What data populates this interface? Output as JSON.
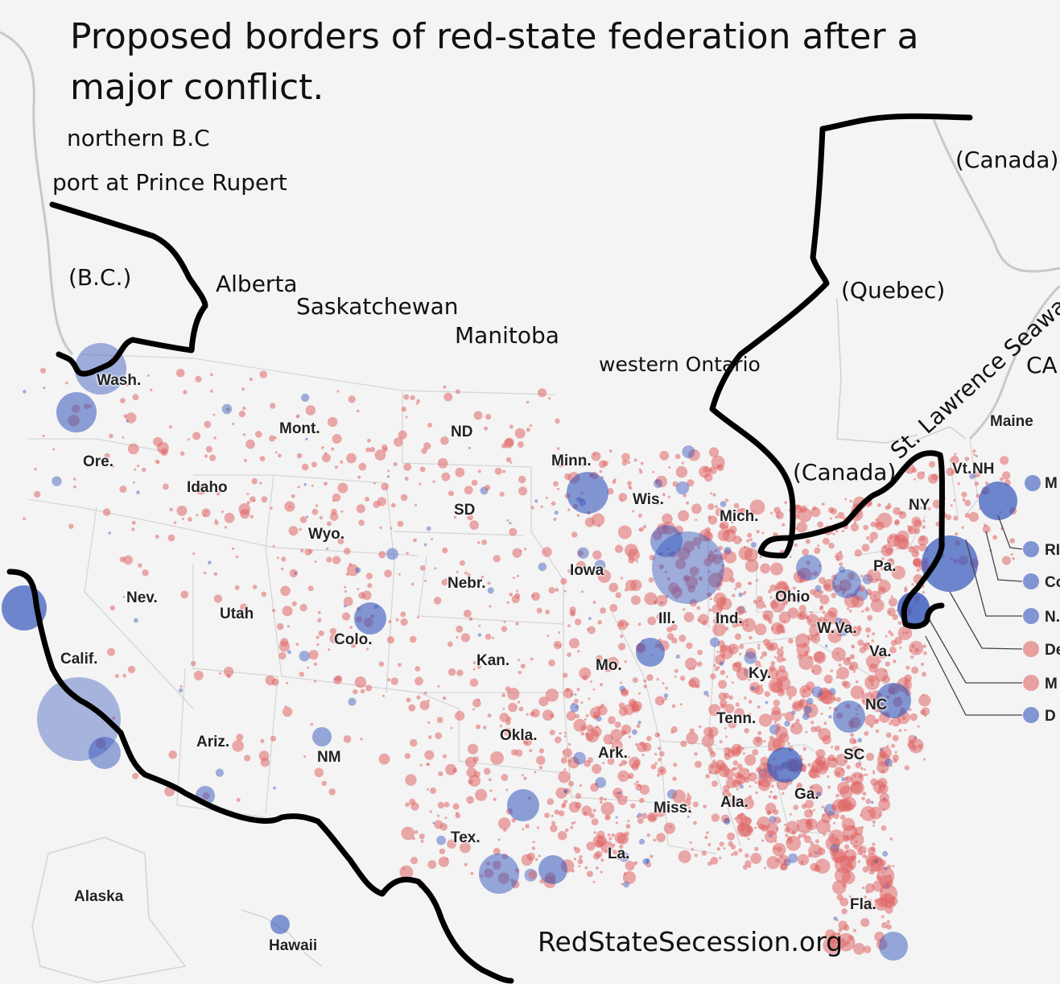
{
  "title": "Proposed borders of red-state federation after a major conflict.",
  "region_notes": {
    "northern_bc": "northern B.C",
    "prince_rupert": "port at Prince Rupert",
    "bc": "(B.C.)",
    "alberta": "Alberta",
    "saskatchewan": "Saskatchewan",
    "manitoba": "Manitoba",
    "western_ontario": "western Ontario",
    "quebec": "(Quebec)",
    "canada_ne": "(Canada)",
    "canada_lakes": "(Canada)",
    "st_lawrence": "St. Lawrence Seaway",
    "ca_cut": "CA"
  },
  "state_labels": {
    "wash": "Wash.",
    "ore": "Ore.",
    "calif": "Calif.",
    "idaho": "Idaho",
    "nev": "Nev.",
    "mont": "Mont.",
    "wyo": "Wyo.",
    "utah": "Utah",
    "colo": "Colo.",
    "ariz": "Ariz.",
    "nm": "NM",
    "nd": "ND",
    "sd": "SD",
    "nebr": "Nebr.",
    "kan": "Kan.",
    "okla": "Okla.",
    "tex": "Tex.",
    "minn": "Minn.",
    "iowa": "Iowa",
    "mo": "Mo.",
    "ark": "Ark.",
    "la": "La.",
    "wis": "Wis.",
    "ill": "Ill.",
    "mich": "Mich.",
    "ind": "Ind.",
    "ohio": "Ohio",
    "ky": "Ky.",
    "tenn": "Tenn.",
    "miss": "Miss.",
    "ala": "Ala.",
    "ga": "Ga.",
    "fla": "Fla.",
    "sc": "SC",
    "nc": "NC",
    "va": "Va.",
    "wva": "W.Va.",
    "pa": "Pa.",
    "ny": "NY",
    "vt": "Vt.",
    "nh": "NH",
    "maine": "Maine",
    "alaska": "Alaska",
    "hawaii": "Hawaii"
  },
  "legend_labels": [
    "M",
    "RI",
    "Co",
    "N.",
    "De",
    "M",
    "D"
  ],
  "credit": "RedStateSecession.org",
  "colors": {
    "background": "#f4f4f4",
    "red_county": "#e06666",
    "blue_county": "#3355bb",
    "border_line": "#000000",
    "state_line": "#cccccc"
  }
}
